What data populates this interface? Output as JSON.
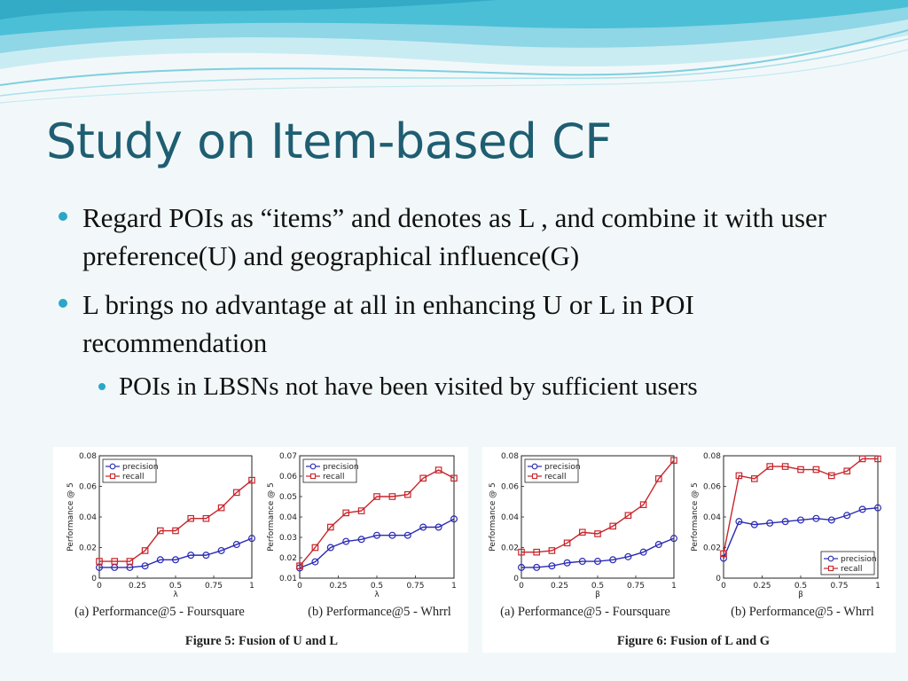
{
  "slide": {
    "title": "Study on Item-based CF",
    "bullets": [
      "Regard POIs as “items” and denotes as L , and combine it with user preference(U) and geographical influence(G)",
      "L brings no advantage at all in enhancing U or L in POI recommendation"
    ],
    "sub_bullets": [
      "POIs in LBSNs not have been visited by sufficient users"
    ]
  },
  "colors": {
    "title": "#1f5e72",
    "bullet": "#2aa7c8",
    "precision": "#2a2ab4",
    "recall": "#c8242a"
  },
  "figure_captions": [
    "Figure 5:  Fusion of U and L",
    "Figure 6:  Fusion of L and G"
  ],
  "chart_data": [
    {
      "type": "line",
      "caption": "(a) Performance@5 - Foursquare",
      "xlabel": "λ",
      "ylabel": "Performance @ 5",
      "x": [
        0,
        0.1,
        0.2,
        0.3,
        0.4,
        0.5,
        0.6,
        0.7,
        0.8,
        0.9,
        1.0
      ],
      "xticks": [
        "0",
        "0.25",
        "0.5",
        "0.75",
        "1"
      ],
      "xtick_values": [
        0,
        0.25,
        0.5,
        0.75,
        1
      ],
      "ylim": [
        0,
        0.08
      ],
      "yticks": [
        "0",
        "0.02",
        "0.04",
        "0.06",
        "0.08"
      ],
      "ytick_values": [
        0,
        0.02,
        0.04,
        0.06,
        0.08
      ],
      "legend": "top-left",
      "series": [
        {
          "name": "precision",
          "marker": "circle",
          "values": [
            0.007,
            0.007,
            0.007,
            0.008,
            0.012,
            0.012,
            0.015,
            0.015,
            0.018,
            0.022,
            0.026
          ]
        },
        {
          "name": "recall",
          "marker": "square",
          "values": [
            0.011,
            0.011,
            0.011,
            0.018,
            0.031,
            0.031,
            0.039,
            0.039,
            0.046,
            0.056,
            0.064
          ]
        }
      ]
    },
    {
      "type": "line",
      "caption": "(b) Performance@5 - Whrrl",
      "xlabel": "λ",
      "ylabel": "Performance @ 5",
      "x": [
        0,
        0.1,
        0.2,
        0.3,
        0.4,
        0.5,
        0.6,
        0.7,
        0.8,
        0.9,
        1.0
      ],
      "xticks": [
        "0",
        "0.25",
        "0.5",
        "0.75",
        "1"
      ],
      "xtick_values": [
        0,
        0.25,
        0.5,
        0.75,
        1
      ],
      "ylim": [
        0.01,
        0.07
      ],
      "yticks": [
        "0.01",
        "0.02",
        "0.03",
        "0.04",
        "0.05",
        "0.06",
        "0.07"
      ],
      "ytick_values": [
        0.01,
        0.02,
        0.03,
        0.04,
        0.05,
        0.06,
        0.07
      ],
      "legend": "top-left",
      "series": [
        {
          "name": "precision",
          "marker": "circle",
          "values": [
            0.015,
            0.018,
            0.025,
            0.028,
            0.029,
            0.031,
            0.031,
            0.031,
            0.035,
            0.035,
            0.039
          ]
        },
        {
          "name": "recall",
          "marker": "square",
          "values": [
            0.016,
            0.025,
            0.035,
            0.042,
            0.043,
            0.05,
            0.05,
            0.051,
            0.059,
            0.063,
            0.059
          ]
        }
      ]
    },
    {
      "type": "line",
      "caption": "(a) Performance@5 - Foursquare",
      "xlabel": "β",
      "ylabel": "Performance @ 5",
      "x": [
        0,
        0.1,
        0.2,
        0.3,
        0.4,
        0.5,
        0.6,
        0.7,
        0.8,
        0.9,
        1.0
      ],
      "xticks": [
        "0",
        "0.25",
        "0.5",
        "0.75",
        "1"
      ],
      "xtick_values": [
        0,
        0.25,
        0.5,
        0.75,
        1
      ],
      "ylim": [
        0,
        0.08
      ],
      "yticks": [
        "0",
        "0.02",
        "0.04",
        "0.06",
        "0.08"
      ],
      "ytick_values": [
        0,
        0.02,
        0.04,
        0.06,
        0.08
      ],
      "legend": "top-left",
      "series": [
        {
          "name": "precision",
          "marker": "circle",
          "values": [
            0.007,
            0.007,
            0.008,
            0.01,
            0.011,
            0.011,
            0.012,
            0.014,
            0.017,
            0.022,
            0.026
          ]
        },
        {
          "name": "recall",
          "marker": "square",
          "values": [
            0.017,
            0.017,
            0.018,
            0.023,
            0.03,
            0.029,
            0.034,
            0.041,
            0.048,
            0.065,
            0.077
          ]
        }
      ]
    },
    {
      "type": "line",
      "caption": "(b) Performance@5 - Whrrl",
      "xlabel": "β",
      "ylabel": "Performance @ 5",
      "x": [
        0,
        0.1,
        0.2,
        0.3,
        0.4,
        0.5,
        0.6,
        0.7,
        0.8,
        0.9,
        1.0
      ],
      "xticks": [
        "0",
        "0.25",
        "0.5",
        "0.75",
        "1"
      ],
      "xtick_values": [
        0,
        0.25,
        0.5,
        0.75,
        1
      ],
      "ylim": [
        0,
        0.08
      ],
      "yticks": [
        "0",
        "0.02",
        "0.04",
        "0.06",
        "0.08"
      ],
      "ytick_values": [
        0,
        0.02,
        0.04,
        0.06,
        0.08
      ],
      "legend": "bottom-right",
      "series": [
        {
          "name": "precision",
          "marker": "circle",
          "values": [
            0.013,
            0.037,
            0.035,
            0.036,
            0.037,
            0.038,
            0.039,
            0.038,
            0.041,
            0.045,
            0.046
          ]
        },
        {
          "name": "recall",
          "marker": "square",
          "values": [
            0.016,
            0.067,
            0.065,
            0.073,
            0.073,
            0.071,
            0.071,
            0.067,
            0.07,
            0.078,
            0.078
          ]
        }
      ]
    }
  ]
}
